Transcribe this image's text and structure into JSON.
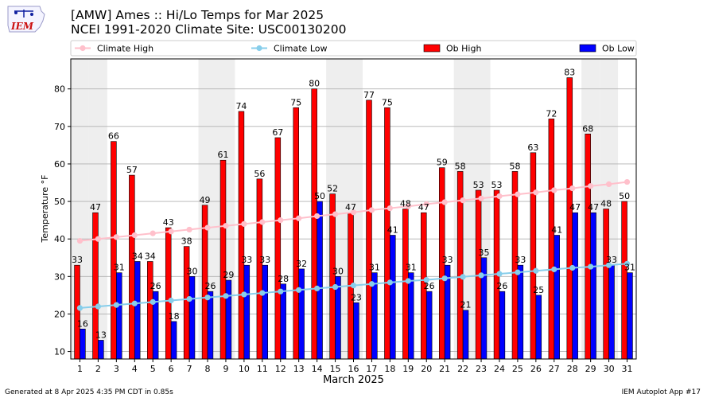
{
  "header": {
    "title_line1": "[AMW] Ames :: Hi/Lo Temps for Mar 2025",
    "title_line2": "NCEI 1991-2020 Climate Site: USC00130200",
    "logo_text": "IEM"
  },
  "footer": {
    "generated": "Generated at 8 Apr 2025 4:35 PM CDT in 0.85s",
    "app": "IEM Autoplot App #17"
  },
  "colors": {
    "ob_high": "#ff0000",
    "ob_low": "#0000ff",
    "climate_high": "#ffc0cb",
    "climate_low": "#87ceeb",
    "weekend_shade": "#eeeeee"
  },
  "chart_data": {
    "type": "bar",
    "xlabel": "March 2025",
    "ylabel": "Temperature °F",
    "ylim": [
      8,
      88
    ],
    "yticks": [
      10,
      20,
      30,
      40,
      50,
      60,
      70,
      80
    ],
    "grid": true,
    "legend_position": "top",
    "categories": [
      "1",
      "2",
      "3",
      "4",
      "5",
      "6",
      "7",
      "8",
      "9",
      "10",
      "11",
      "12",
      "13",
      "14",
      "15",
      "16",
      "17",
      "18",
      "19",
      "20",
      "21",
      "22",
      "23",
      "24",
      "25",
      "26",
      "27",
      "28",
      "29",
      "30",
      "31"
    ],
    "shaded_days": [
      1,
      2,
      8,
      9,
      15,
      16,
      22,
      23,
      29,
      30
    ],
    "series": [
      {
        "name": "Ob High",
        "kind": "bar",
        "color": "#ff0000",
        "values": [
          33,
          47,
          66,
          57,
          34,
          43,
          38,
          49,
          61,
          74,
          56,
          67,
          75,
          80,
          52,
          47,
          77,
          75,
          48,
          47,
          59,
          58,
          53,
          53,
          58,
          63,
          72,
          83,
          68,
          48,
          50
        ]
      },
      {
        "name": "Ob Low",
        "kind": "bar",
        "color": "#0000ff",
        "values": [
          16,
          13,
          31,
          34,
          26,
          18,
          30,
          26,
          29,
          33,
          33,
          28,
          32,
          50,
          30,
          23,
          31,
          41,
          31,
          26,
          33,
          21,
          35,
          26,
          33,
          25,
          41,
          47,
          47,
          33,
          31
        ]
      },
      {
        "name": "Climate High",
        "kind": "line",
        "color": "#ffc0cb",
        "values": [
          39.5,
          40.0,
          40.5,
          41.0,
          41.5,
          42.0,
          42.5,
          43.0,
          43.5,
          44.0,
          44.5,
          45.0,
          45.5,
          46.1,
          46.6,
          47.1,
          47.7,
          48.2,
          48.7,
          49.3,
          49.8,
          50.3,
          50.8,
          51.4,
          51.9,
          52.4,
          53.0,
          53.5,
          54.1,
          54.6,
          55.2
        ]
      },
      {
        "name": "Climate Low",
        "kind": "line",
        "color": "#87ceeb",
        "values": [
          21.6,
          22.0,
          22.4,
          22.8,
          23.2,
          23.6,
          24.0,
          24.4,
          24.8,
          25.2,
          25.6,
          26.0,
          26.4,
          26.8,
          27.2,
          27.6,
          28.0,
          28.4,
          28.8,
          29.1,
          29.5,
          29.9,
          30.3,
          30.7,
          31.1,
          31.5,
          31.9,
          32.3,
          32.6,
          33.0,
          33.4
        ]
      }
    ]
  }
}
